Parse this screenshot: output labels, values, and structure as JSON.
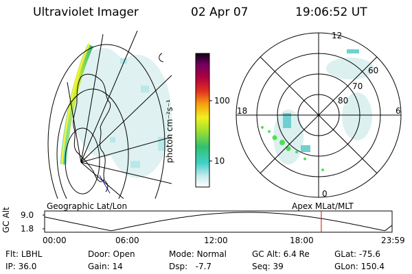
{
  "header": {
    "title": "Ultraviolet Imager",
    "date": "02 Apr 07",
    "time": "19:06:52 UT"
  },
  "colorbar": {
    "label": "photon cm⁻²s⁻¹",
    "ticks": [
      "100",
      "10"
    ]
  },
  "polar": {
    "mlt_labels": {
      "top": "12",
      "left": "18",
      "right": "6",
      "bottom": "0"
    },
    "lat_labels": [
      "60",
      "70",
      "80"
    ]
  },
  "map_titles": {
    "left": "Geographic Lat/Lon",
    "right": "Apex MLat/MLT"
  },
  "alt_plot": {
    "ylabel": "GC Alt",
    "yticks": [
      "9.0",
      "1.8"
    ],
    "xticks": [
      "00:00",
      "06:00",
      "12:00",
      "18:00",
      "23:59"
    ],
    "marker_time_hours": 19.11
  },
  "info": {
    "row1": [
      {
        "label": "Flt:",
        "value": "LBHL"
      },
      {
        "label": "Door:",
        "value": "Open"
      },
      {
        "label": "Mode:",
        "value": "Normal"
      },
      {
        "label": "GC Alt:",
        "value": "6.4 Re"
      },
      {
        "label": "GLat:",
        "value": "-75.6"
      }
    ],
    "row2": [
      {
        "label": "IP:",
        "value": "36.0"
      },
      {
        "label": "Gain:",
        "value": "14"
      },
      {
        "label": "Dsp:",
        "value": "-7.7"
      },
      {
        "label": "Seq:",
        "value": "39"
      },
      {
        "label": "GLon:",
        "value": "150.4"
      }
    ]
  }
}
